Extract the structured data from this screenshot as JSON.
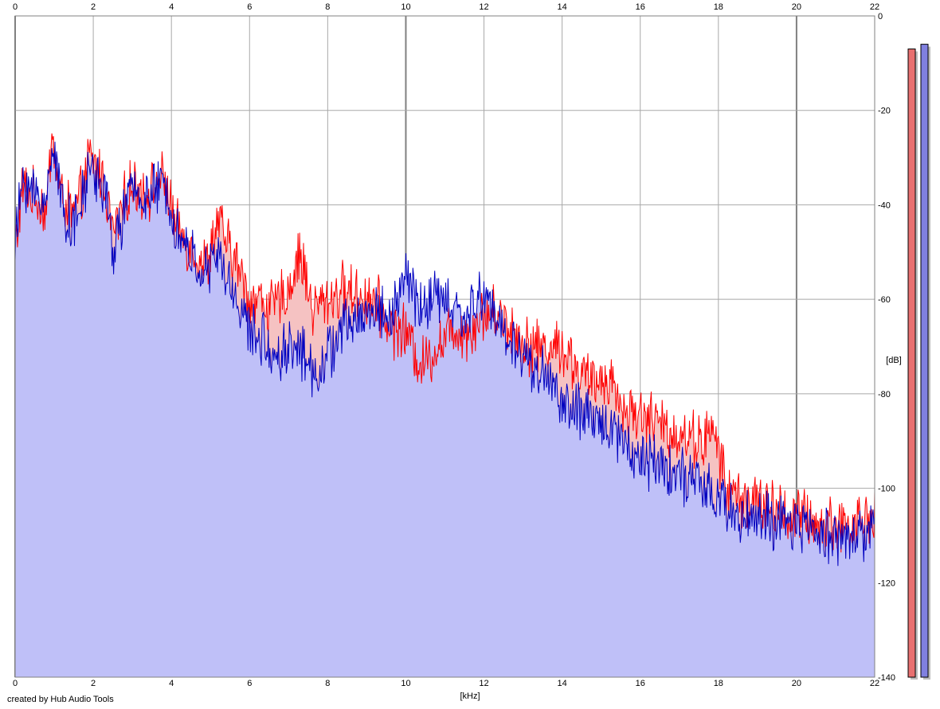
{
  "credit": "created by Hub Audio Tools",
  "chart_data": {
    "type": "area",
    "xlabel": "[kHz]",
    "ylabel": "[dB]",
    "xlim": [
      0,
      22
    ],
    "ylim": [
      -140,
      0
    ],
    "xticks": [
      0,
      2,
      4,
      6,
      8,
      10,
      12,
      14,
      16,
      18,
      20,
      22
    ],
    "yticks": [
      0,
      -20,
      -40,
      -60,
      -80,
      -100,
      -120,
      -140
    ],
    "grid": true,
    "colors": {
      "red_line": "#ff0000",
      "red_fill": "#f5c2c2",
      "blue_line": "#0000c0",
      "blue_fill": "#bfc0f8",
      "grid": "#a8a8a8",
      "grid_major": "#808080"
    },
    "series": [
      {
        "color": "#ff0000",
        "x": [
          0,
          0.2,
          0.4,
          0.6,
          0.8,
          0.95,
          1.1,
          1.3,
          1.5,
          1.7,
          1.9,
          2.1,
          2.3,
          2.5,
          2.7,
          2.9,
          3.1,
          3.3,
          3.5,
          3.7,
          3.9,
          4.1,
          4.3,
          4.6,
          4.9,
          5.2,
          5.4,
          5.7,
          6.0,
          6.3,
          6.6,
          7.0,
          7.3,
          7.6,
          8.0,
          8.4,
          8.8,
          9.2,
          9.6,
          10.0,
          10.4,
          10.8,
          11.2,
          11.6,
          12.0,
          12.4,
          12.8,
          13.2,
          13.6,
          14.0,
          14.4,
          14.8,
          15.2,
          15.6,
          16.0,
          16.4,
          16.8,
          17.2,
          17.6,
          17.9,
          18.2,
          18.6,
          19.0,
          19.4,
          19.8,
          20.2,
          20.6,
          21.0,
          21.4,
          21.8,
          22.0
        ],
        "values": [
          -49,
          -36,
          -38,
          -39,
          -42,
          -24,
          -36,
          -40,
          -42,
          -38,
          -30,
          -32,
          -36,
          -46,
          -42,
          -37,
          -36,
          -37,
          -37,
          -34,
          -37,
          -45,
          -47,
          -50,
          -53,
          -43,
          -48,
          -53,
          -60,
          -60,
          -62,
          -58,
          -50,
          -62,
          -60,
          -58,
          -59,
          -60,
          -66,
          -67,
          -74,
          -70,
          -66,
          -67,
          -63,
          -63,
          -67,
          -70,
          -70,
          -70,
          -75,
          -78,
          -76,
          -84,
          -84,
          -86,
          -88,
          -89,
          -90,
          -88,
          -100,
          -102,
          -103,
          -104,
          -106,
          -106,
          -108,
          -107,
          -108,
          -106,
          -106
        ]
      },
      {
        "color": "#0000c0",
        "x": [
          0,
          0.2,
          0.4,
          0.6,
          0.8,
          0.95,
          1.1,
          1.3,
          1.5,
          1.7,
          1.9,
          2.1,
          2.3,
          2.5,
          2.7,
          2.9,
          3.1,
          3.3,
          3.5,
          3.7,
          3.9,
          4.1,
          4.3,
          4.6,
          4.9,
          5.2,
          5.4,
          5.7,
          6.0,
          6.3,
          6.6,
          7.0,
          7.3,
          7.6,
          8.0,
          8.4,
          8.8,
          9.2,
          9.6,
          10.0,
          10.4,
          10.8,
          11.2,
          11.6,
          12.0,
          12.4,
          12.8,
          13.2,
          13.6,
          14.0,
          14.4,
          14.8,
          15.2,
          15.6,
          16.0,
          16.4,
          16.8,
          17.2,
          17.6,
          17.9,
          18.2,
          18.6,
          19.0,
          19.4,
          19.8,
          20.2,
          20.6,
          21.0,
          21.4,
          21.8,
          22.0
        ],
        "values": [
          -49,
          -34,
          -37,
          -38,
          -40,
          -25,
          -35,
          -42,
          -45,
          -40,
          -32,
          -34,
          -37,
          -50,
          -44,
          -38,
          -37,
          -38,
          -38,
          -36,
          -37,
          -45,
          -48,
          -52,
          -55,
          -50,
          -56,
          -60,
          -67,
          -68,
          -72,
          -70,
          -70,
          -76,
          -72,
          -66,
          -64,
          -62,
          -64,
          -55,
          -62,
          -59,
          -62,
          -64,
          -58,
          -66,
          -70,
          -74,
          -76,
          -82,
          -84,
          -86,
          -86,
          -90,
          -94,
          -94,
          -96,
          -98,
          -100,
          -102,
          -104,
          -106,
          -106,
          -108,
          -108,
          -108,
          -109,
          -110,
          -110,
          -110,
          -106
        ]
      }
    ],
    "level_meters": [
      {
        "color": "#e87070",
        "level_db": -7
      },
      {
        "color": "#8080e0",
        "level_db": -6
      }
    ]
  }
}
